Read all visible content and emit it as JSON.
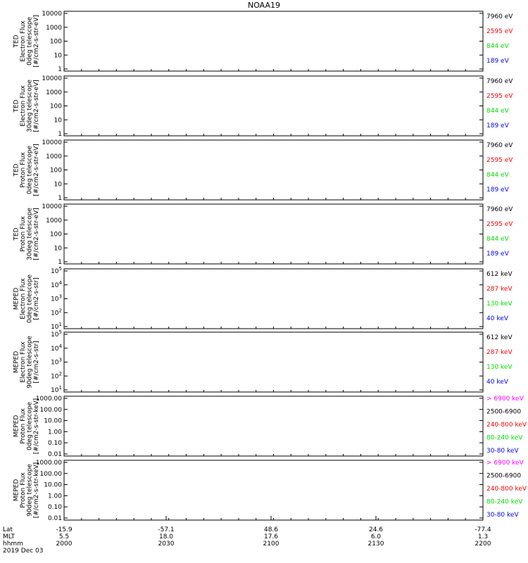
{
  "title": "NOAA19",
  "colors": {
    "blue": "#0000ff",
    "red": "#ff0000",
    "green": "#00e000",
    "black": "#000000",
    "magenta": "#ff00ff"
  },
  "chart_data": [
    {
      "type": "line",
      "scale": "log",
      "ylim": [
        1,
        10000
      ],
      "yticks": [
        "10000",
        "1000",
        "100",
        "10",
        "1"
      ],
      "ylabel": [
        "TED",
        "Electron Flux",
        "0deg telescope",
        "[#/cm2-s-str-eV]"
      ],
      "series": [
        {
          "name": "7960 eV",
          "color": "#000000"
        },
        {
          "name": "2595 eV",
          "color": "#ff0000"
        },
        {
          "name": "844 eV",
          "color": "#00e000"
        },
        {
          "name": "189 eV",
          "color": "#0000ff"
        }
      ]
    },
    {
      "type": "line",
      "scale": "log",
      "ylim": [
        1,
        10000
      ],
      "yticks": [
        "10000",
        "1000",
        "100",
        "10",
        "1"
      ],
      "ylabel": [
        "TED",
        "Electron Flux",
        "30deg telescope",
        "[#/cm2-s-str-eV]"
      ],
      "series": [
        {
          "name": "7960 eV",
          "color": "#000000"
        },
        {
          "name": "2595 eV",
          "color": "#ff0000"
        },
        {
          "name": "844 eV",
          "color": "#00e000"
        },
        {
          "name": "189 eV",
          "color": "#0000ff"
        }
      ]
    },
    {
      "type": "line",
      "scale": "log",
      "ylim": [
        1,
        10000
      ],
      "yticks": [
        "10000",
        "1000",
        "100",
        "10",
        "1"
      ],
      "ylabel": [
        "TED",
        "Proton Flux",
        "0deg telescope",
        "[#/cm2-s-str-eV]"
      ],
      "series": [
        {
          "name": "7960 eV",
          "color": "#000000"
        },
        {
          "name": "2595 eV",
          "color": "#ff0000"
        },
        {
          "name": "844 eV",
          "color": "#00e000"
        },
        {
          "name": "189 eV",
          "color": "#0000ff"
        }
      ]
    },
    {
      "type": "line",
      "scale": "log",
      "ylim": [
        1,
        10000
      ],
      "yticks": [
        "10000",
        "1000",
        "100",
        "10",
        "1"
      ],
      "ylabel": [
        "TED",
        "Proton Flux",
        "30deg telescope",
        "[#/cm2-s-str-eV]"
      ],
      "series": [
        {
          "name": "7960 eV",
          "color": "#000000"
        },
        {
          "name": "2595 eV",
          "color": "#ff0000"
        },
        {
          "name": "844 eV",
          "color": "#00e000"
        },
        {
          "name": "189 eV",
          "color": "#0000ff"
        }
      ]
    },
    {
      "type": "line",
      "scale": "log",
      "ylim": [
        10,
        100000
      ],
      "yticks": [
        "10^5",
        "10^4",
        "10^3",
        "10^2",
        "10^1"
      ],
      "ylabel": [
        "MEPED",
        "Electron Flux",
        "0deg telescope",
        "[#/cm2-s-str]"
      ],
      "series": [
        {
          "name": "612 keV",
          "color": "#000000"
        },
        {
          "name": "287 keV",
          "color": "#ff0000"
        },
        {
          "name": "130 keV",
          "color": "#00e000"
        },
        {
          "name": "40 keV",
          "color": "#0000ff"
        }
      ]
    },
    {
      "type": "line",
      "scale": "log",
      "ylim": [
        10,
        100000
      ],
      "yticks": [
        "10^5",
        "10^4",
        "10^3",
        "10^2",
        "10^1"
      ],
      "ylabel": [
        "MEPED",
        "Electron Flux",
        "90deg telescope",
        "[#/cm2-s-str]"
      ],
      "series": [
        {
          "name": "612 keV",
          "color": "#000000"
        },
        {
          "name": "287 keV",
          "color": "#ff0000"
        },
        {
          "name": "130 keV",
          "color": "#00e000"
        },
        {
          "name": "40 keV",
          "color": "#0000ff"
        }
      ]
    },
    {
      "type": "line",
      "scale": "log",
      "ylim": [
        0.01,
        1000
      ],
      "yticks": [
        "1000.00",
        "100.00",
        "10.00",
        "1.00",
        "0.10",
        "0.01"
      ],
      "ylabel": [
        "MEPED",
        "Proton Flux",
        "0deg telescope",
        "[#/cm2-s-str-keV]"
      ],
      "series": [
        {
          "name": "> 6900 keV",
          "color": "#ff00ff"
        },
        {
          "name": "2500-6900",
          "color": "#000000"
        },
        {
          "name": "240-800 keV",
          "color": "#ff0000"
        },
        {
          "name": "80-240 keV",
          "color": "#00e000"
        },
        {
          "name": "30-80 keV",
          "color": "#0000ff"
        }
      ]
    },
    {
      "type": "line",
      "scale": "log",
      "ylim": [
        0.01,
        1000
      ],
      "yticks": [
        "1000.00",
        "100.00",
        "10.00",
        "1.00",
        "0.10",
        "0.01"
      ],
      "ylabel": [
        "MEPED",
        "Proton Flux",
        "90deg telescope",
        "[#/cm2-s-str-keV]"
      ],
      "series": [
        {
          "name": "> 6900 keV",
          "color": "#ff00ff"
        },
        {
          "name": "2500-6900",
          "color": "#000000"
        },
        {
          "name": "240-800 keV",
          "color": "#ff0000"
        },
        {
          "name": "80-240 keV",
          "color": "#00e000"
        },
        {
          "name": "30-80 keV",
          "color": "#0000ff"
        }
      ]
    }
  ],
  "x_axis": {
    "rows": [
      "Lat",
      "MLT",
      "hhmm"
    ],
    "columns": [
      {
        "lat": "-15.9",
        "mlt": "5.5",
        "hhmm": "2000"
      },
      {
        "lat": "-57.1",
        "mlt": "18.0",
        "hhmm": "2030"
      },
      {
        "lat": "48.6",
        "mlt": "17.6",
        "hhmm": "2100"
      },
      {
        "lat": "24.6",
        "mlt": "6.0",
        "hhmm": "2130"
      },
      {
        "lat": "-77.4",
        "mlt": "1.3",
        "hhmm": "2200"
      }
    ]
  },
  "date": "2019 Dec 03"
}
